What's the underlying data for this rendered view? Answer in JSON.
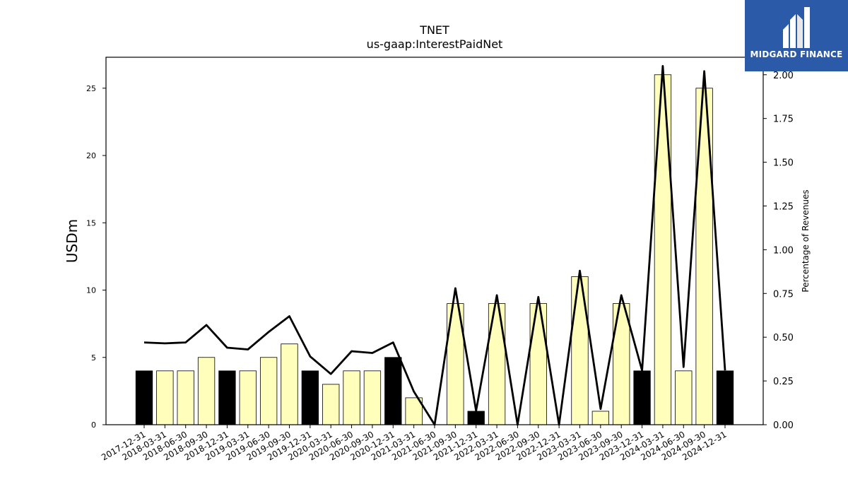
{
  "chart_data": {
    "type": "bar",
    "title": "TNET",
    "subtitle": "us-gaap:InterestPaidNet",
    "ylabel": "USDm",
    "y2label": "Percentage of Revenues",
    "ylim": [
      0,
      27.3
    ],
    "y2lim": [
      0,
      2.1
    ],
    "yticks": [
      "0",
      "5",
      "10",
      "15",
      "20",
      "25"
    ],
    "y2ticks": [
      "0.00",
      "0.25",
      "0.50",
      "0.75",
      "1.00",
      "1.25",
      "1.50",
      "1.75",
      "2.00"
    ],
    "categories": [
      "2017-12-31",
      "2018-03-31",
      "2018-06-30",
      "2018-09-30",
      "2018-12-31",
      "2019-03-31",
      "2019-06-30",
      "2019-09-30",
      "2019-12-31",
      "2020-03-31",
      "2020-06-30",
      "2020-09-30",
      "2020-12-31",
      "2021-03-31",
      "2021-06-30",
      "2021-09-30",
      "2021-12-31",
      "2022-03-31",
      "2022-06-30",
      "2022-09-30",
      "2022-12-31",
      "2023-03-31",
      "2023-06-30",
      "2023-09-30",
      "2023-12-31",
      "2024-03-31",
      "2024-06-30",
      "2024-09-30",
      "2024-12-31"
    ],
    "series": [
      {
        "type": "bar",
        "values": [
          4,
          4,
          4,
          5,
          4,
          4,
          5,
          6,
          4,
          3,
          4,
          4,
          5,
          2,
          0,
          9,
          1,
          9,
          0,
          9,
          0,
          11,
          1,
          9,
          4,
          26,
          4,
          25,
          4
        ],
        "annual": [
          true,
          false,
          false,
          false,
          true,
          false,
          false,
          false,
          true,
          false,
          false,
          false,
          true,
          false,
          false,
          false,
          true,
          false,
          false,
          false,
          true,
          false,
          false,
          false,
          true,
          false,
          false,
          false,
          true
        ]
      },
      {
        "type": "line",
        "axis": "right",
        "values": [
          0.47,
          0.465,
          0.47,
          0.57,
          0.44,
          0.43,
          0.53,
          0.62,
          0.39,
          0.29,
          0.42,
          0.41,
          0.47,
          0.19,
          0.0,
          0.78,
          0.08,
          0.74,
          0.0,
          0.73,
          0.0,
          0.88,
          0.09,
          0.74,
          0.31,
          2.05,
          0.33,
          2.02,
          0.31
        ]
      }
    ],
    "colors": {
      "annual_bar": "#000000",
      "quarter_bar": "#ffffbb",
      "bar_edge": "#000000",
      "line": "#000000"
    },
    "grid": false
  },
  "logo": {
    "text": "MIDGARD FINANCE",
    "background": "#2b5aa8"
  }
}
